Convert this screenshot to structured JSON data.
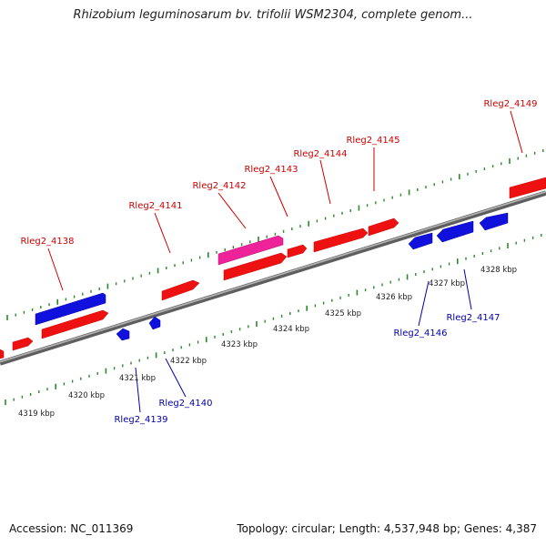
{
  "title": "Rhizobium leguminosarum bv. trifolii WSM2304, complete genom...",
  "footer": {
    "accession": "Accession: NC_011369",
    "summary": "Topology: circular; Length: 4,537,948 bp; Genes: 4,387"
  },
  "colors": {
    "forward": "#ee1111",
    "reverse": "#1111dd",
    "highlight": "#ee2299",
    "backbone": "#808080",
    "ticks": "#2a8a2a",
    "forward_label": "#cc0000",
    "reverse_label": "#0000aa"
  },
  "scale_labels": [
    "4319 kbp",
    "4320 kbp",
    "4321 kbp",
    "4322 kbp",
    "4323 kbp",
    "4324 kbp",
    "4325 kbp",
    "4326 kbp",
    "4327 kbp",
    "4328 kbp"
  ],
  "forward_genes": [
    {
      "label": "Rleg2_4138",
      "color": "forward"
    },
    {
      "label": "Rleg2_4141",
      "color": "forward"
    },
    {
      "label": "Rleg2_4142",
      "color": "highlight"
    },
    {
      "label": "Rleg2_4143",
      "color": "forward"
    },
    {
      "label": "Rleg2_4144",
      "color": "forward"
    },
    {
      "label": "Rleg2_4145",
      "color": "forward"
    },
    {
      "label": "Rleg2_4149",
      "color": "forward"
    }
  ],
  "reverse_genes": [
    {
      "label": "Rleg2_4139",
      "color": "reverse"
    },
    {
      "label": "Rleg2_4140",
      "color": "reverse"
    },
    {
      "label": "Rleg2_4146",
      "color": "reverse"
    },
    {
      "label": "Rleg2_4147",
      "color": "reverse"
    }
  ]
}
